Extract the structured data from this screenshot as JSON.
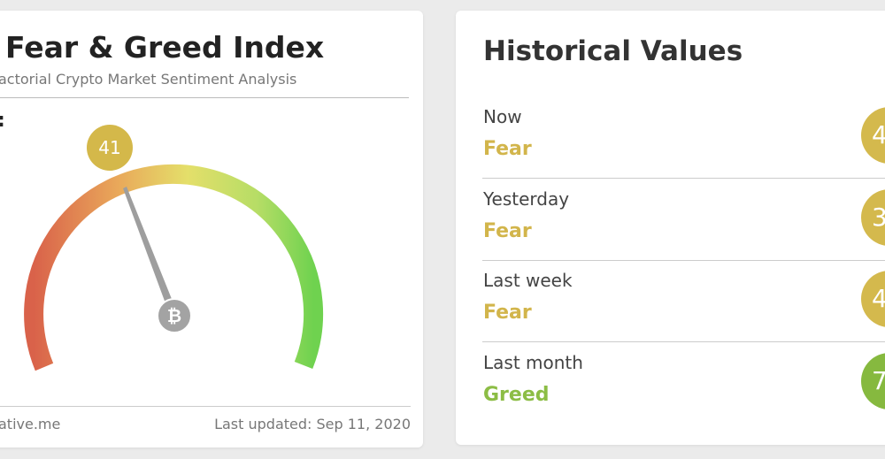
{
  "left_card": {
    "title": "Fear & Greed Index",
    "subtitle": "actorial Crypto Market Sentiment Analysis",
    "label": ":",
    "gauge_value": "41",
    "footer_left": "ative.me",
    "footer_right": "Last updated: Sep 11, 2020"
  },
  "right_card": {
    "title": "Historical Values",
    "rows": [
      {
        "label": "Now",
        "status": "Fear",
        "value": "4"
      },
      {
        "label": "Yesterday",
        "status": "Fear",
        "value": "3"
      },
      {
        "label": "Last week",
        "status": "Fear",
        "value": "4"
      },
      {
        "label": "Last month",
        "status": "Greed",
        "value": "7"
      }
    ]
  }
}
